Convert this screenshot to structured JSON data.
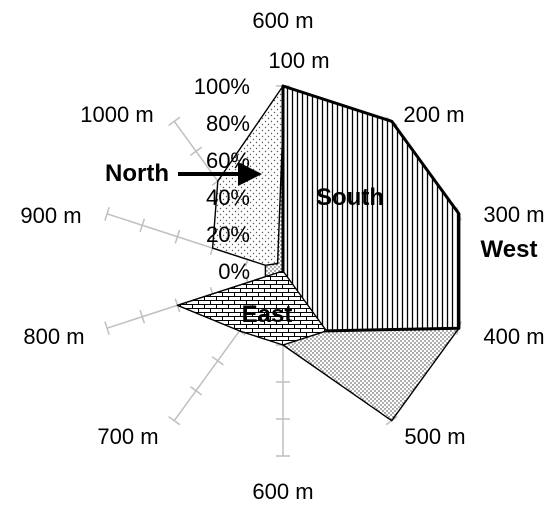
{
  "chart_data": {
    "type": "radar",
    "top_label": "600 m",
    "categories": [
      "100 m",
      "200 m",
      "300 m",
      "400 m",
      "500 m",
      "600 m",
      "700 m",
      "800 m",
      "900 m",
      "1000 m"
    ],
    "radial_ticks": [
      "0%",
      "20%",
      "40%",
      "60%",
      "80%",
      "100%"
    ],
    "rlim": [
      0,
      100
    ],
    "series": [
      {
        "name": "North",
        "values": [
          100,
          80,
          50,
          30,
          58,
          0,
          0,
          0,
          40,
          60
        ],
        "fill": "dots"
      },
      {
        "name": "South",
        "values": [
          80,
          100,
          100,
          100,
          100,
          40,
          30,
          10,
          10,
          5
        ],
        "fill": "dots-dense"
      },
      {
        "name": "West",
        "values": [
          100,
          100,
          100,
          100,
          40,
          20,
          10,
          0,
          0,
          0
        ],
        "fill": "vertical-lines"
      },
      {
        "name": "East",
        "values": [
          0,
          0,
          0,
          0,
          40,
          40,
          40,
          60,
          0,
          0
        ],
        "fill": "bricks"
      }
    ],
    "arrow": {
      "label": "North"
    },
    "grid": false
  }
}
